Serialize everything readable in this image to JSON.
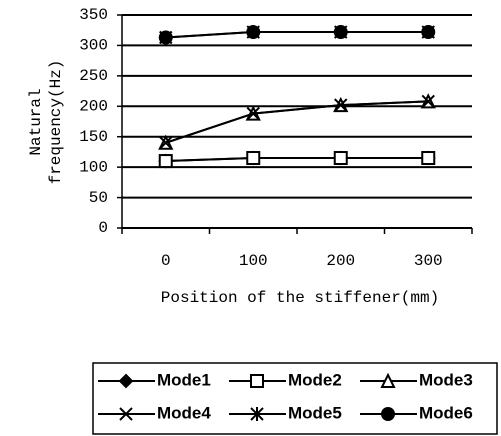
{
  "chart_data": {
    "type": "line",
    "ylabel": [
      "Natural",
      "frequency(Hz)"
    ],
    "xlabel": "Position of the stiffener(mm)",
    "categories": [
      "0",
      "100",
      "200",
      "300"
    ],
    "series": [
      {
        "name": "Mode1",
        "color": "#000000",
        "marker": "diamond",
        "values": [
          110,
          115,
          115,
          115
        ]
      },
      {
        "name": "Mode2",
        "color": "#000000",
        "marker": "square",
        "values": [
          110,
          115,
          115,
          115
        ]
      },
      {
        "name": "Mode3",
        "color": "#000000",
        "marker": "triangle",
        "values": [
          140,
          188,
          202,
          208
        ]
      },
      {
        "name": "Mode4",
        "color": "#000000",
        "marker": "x",
        "values": [
          140,
          188,
          202,
          208
        ]
      },
      {
        "name": "Mode5",
        "color": "#000000",
        "marker": "asterisk",
        "values": [
          313,
          322,
          322,
          322
        ]
      },
      {
        "name": "Mode6",
        "color": "#000000",
        "marker": "circle",
        "values": [
          313,
          322,
          322,
          322
        ]
      }
    ],
    "ylim": [
      0,
      350
    ],
    "yticks": [
      0,
      50,
      100,
      150,
      200,
      250,
      300,
      350
    ],
    "grid": true,
    "legend": "bottom"
  }
}
